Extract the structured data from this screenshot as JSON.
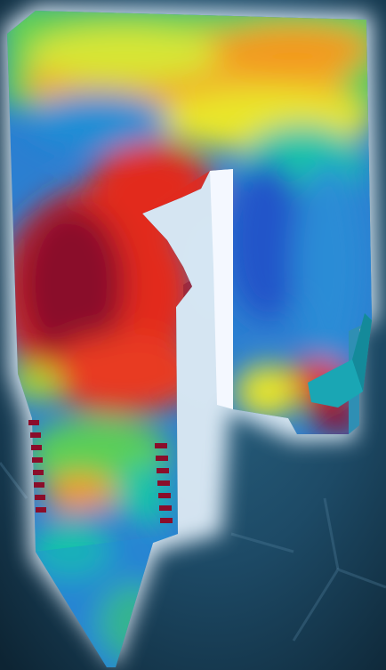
{
  "scene": {
    "subject": "fea-stress-contour-clip-part",
    "colormap": [
      "#1c3fbf",
      "#1f8fd6",
      "#19c4a8",
      "#6ed33a",
      "#e9e62a",
      "#f39a1e",
      "#e2291e",
      "#8a0d2a"
    ],
    "background_colors": [
      "#0d2433",
      "#1d4a66",
      "#2d6a8a"
    ],
    "glow_color": "#e8f4ff"
  }
}
